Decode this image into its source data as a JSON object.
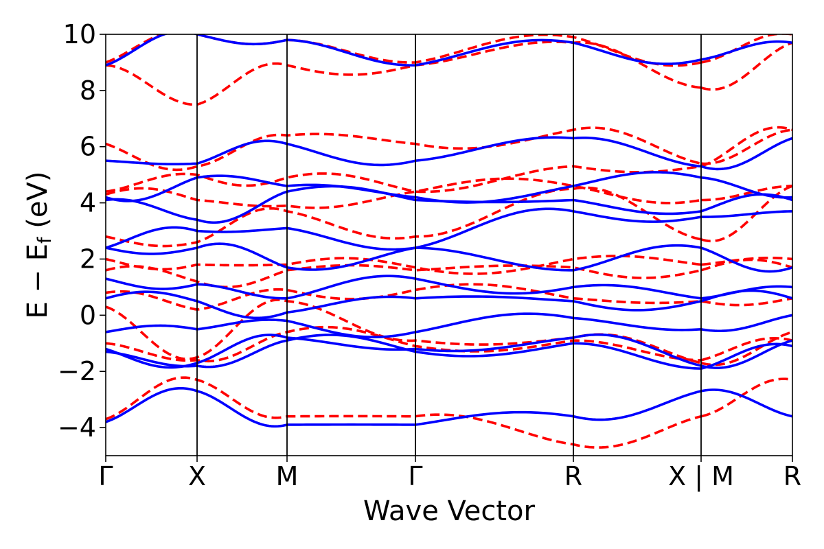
{
  "chart_data": {
    "type": "line",
    "xlabel": "Wave Vector",
    "ylabel": {
      "main": "E − E",
      "sub": "f",
      "unit": " (eV)"
    },
    "ylim": [
      -5,
      10
    ],
    "yticks": [
      "−4",
      "−2",
      "0",
      "2",
      "4",
      "6",
      "8",
      "10"
    ],
    "ytick_values": [
      -4,
      -2,
      0,
      2,
      4,
      6,
      8,
      10
    ],
    "xlim": [
      0,
      1
    ],
    "kpoints": [
      {
        "label": "Γ",
        "pos": 0.0
      },
      {
        "label": "X",
        "pos": 0.133
      },
      {
        "label": "M",
        "pos": 0.264
      },
      {
        "label": "Γ",
        "pos": 0.451
      },
      {
        "label": "R",
        "pos": 0.681
      },
      {
        "label": "X | M",
        "pos": 0.867
      },
      {
        "label": "R",
        "pos": 1.0
      }
    ],
    "series": [
      {
        "style": "dashed",
        "color": "#ff0000",
        "bands": [
          [
            -3.7,
            -2.3,
            -3.6,
            -3.6,
            -4.6,
            -3.6,
            -2.3
          ],
          [
            -1.0,
            -1.6,
            -0.6,
            -1.1,
            -0.9,
            -1.6,
            -0.9
          ],
          [
            0.3,
            -1.5,
            0.5,
            -0.9,
            -0.8,
            -1.7,
            -0.6
          ],
          [
            0.8,
            0.2,
            0.9,
            0.9,
            0.6,
            0.5,
            0.6
          ],
          [
            1.6,
            1.2,
            1.6,
            1.6,
            1.7,
            1.6,
            1.7
          ],
          [
            2.0,
            1.8,
            1.8,
            1.7,
            2.0,
            1.8,
            2.0
          ],
          [
            2.8,
            2.6,
            3.7,
            2.8,
            4.5,
            2.7,
            4.6
          ],
          [
            4.3,
            4.1,
            3.9,
            4.4,
            4.6,
            4.1,
            4.6
          ],
          [
            4.4,
            5.0,
            4.9,
            4.4,
            5.3,
            5.3,
            6.6
          ],
          [
            6.1,
            5.3,
            6.4,
            6.1,
            6.6,
            5.4,
            6.6
          ],
          [
            8.9,
            7.5,
            8.9,
            8.9,
            9.7,
            8.1,
            9.7
          ],
          [
            9.0,
            10.0,
            9.8,
            9.0,
            9.9,
            9.0,
            10.0
          ]
        ]
      },
      {
        "style": "solid",
        "color": "#0000ff",
        "bands": [
          [
            -3.8,
            -2.7,
            -3.9,
            -3.9,
            -3.6,
            -2.7,
            -3.6
          ],
          [
            -1.3,
            -1.8,
            -0.9,
            -1.3,
            -1.0,
            -1.9,
            -1.1
          ],
          [
            -1.2,
            -1.7,
            -0.8,
            -1.2,
            -0.8,
            -1.8,
            -0.9
          ],
          [
            -0.6,
            -0.5,
            -0.2,
            -0.6,
            -0.1,
            -0.5,
            0.0
          ],
          [
            0.6,
            0.5,
            0.1,
            0.6,
            0.5,
            0.5,
            0.6
          ],
          [
            1.3,
            1.1,
            0.6,
            1.3,
            1.0,
            0.6,
            1.0
          ],
          [
            2.4,
            2.4,
            1.7,
            2.4,
            1.6,
            2.4,
            1.7
          ],
          [
            2.4,
            3.0,
            3.1,
            2.4,
            3.7,
            3.5,
            3.7
          ],
          [
            4.1,
            3.4,
            4.4,
            4.1,
            4.1,
            3.7,
            4.1
          ],
          [
            4.2,
            4.9,
            4.6,
            4.2,
            4.6,
            4.9,
            4.2
          ],
          [
            5.5,
            5.4,
            6.1,
            5.5,
            6.3,
            5.3,
            6.3
          ],
          [
            8.9,
            10.0,
            9.8,
            8.9,
            9.7,
            9.1,
            9.7
          ]
        ]
      }
    ]
  }
}
